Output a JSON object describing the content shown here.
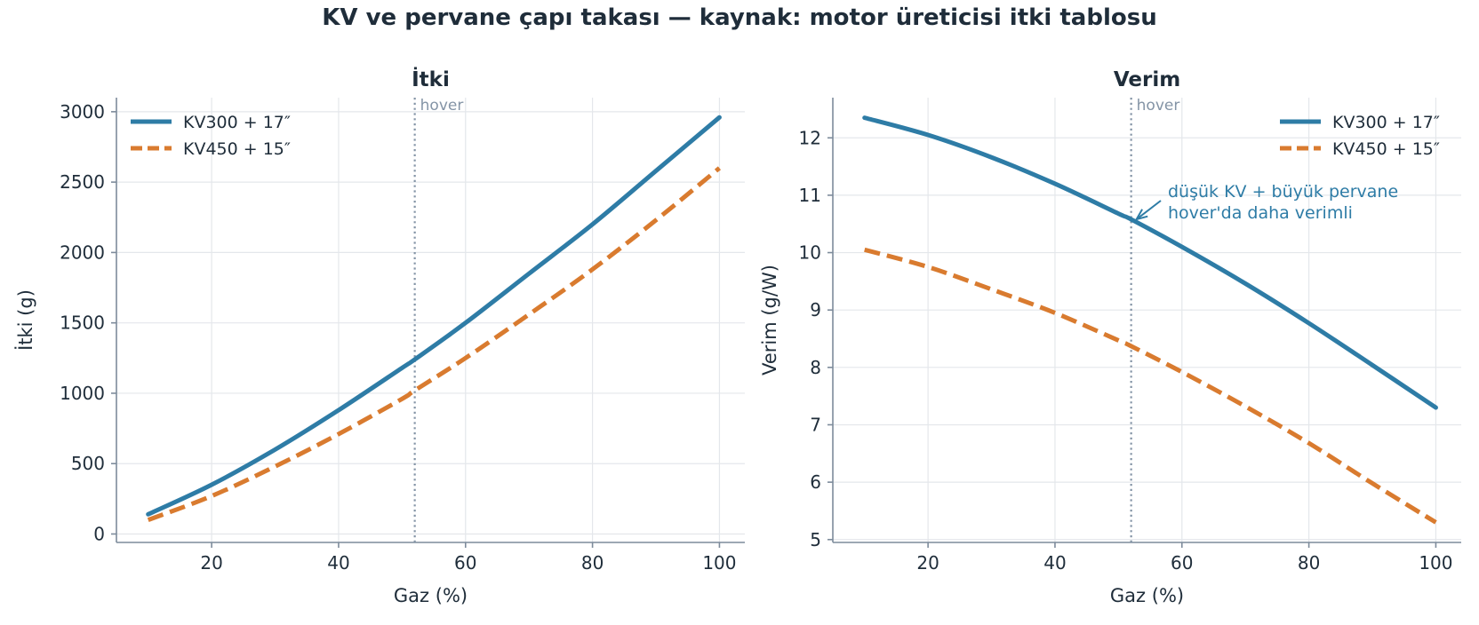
{
  "suptitle": "KV ve pervane çapı takası — kaynak: motor üreticisi itki tablosu",
  "colors": {
    "series1": "#2e7ca6",
    "series2": "#d97b2f",
    "hover_line": "#8494a6",
    "text": "#1f2d3a"
  },
  "chart_data": [
    {
      "type": "line",
      "title": "İtki",
      "xlabel": "Gaz (%)",
      "ylabel": "İtki (g)",
      "xlim": [
        5,
        104
      ],
      "ylim": [
        -60,
        3100
      ],
      "xticks": [
        20,
        40,
        60,
        80,
        100
      ],
      "yticks": [
        0,
        500,
        1000,
        1500,
        2000,
        2500,
        3000
      ],
      "grid": true,
      "legend": "top-left",
      "vline": {
        "x": 52,
        "label": "hover"
      },
      "series": [
        {
          "name": "KV300 + 17″",
          "style": "solid",
          "x": [
            10,
            20,
            30,
            40,
            50,
            52,
            60,
            70,
            80,
            90,
            100
          ],
          "y": [
            140,
            350,
            600,
            880,
            1180,
            1240,
            1500,
            1850,
            2200,
            2580,
            2960
          ]
        },
        {
          "name": "KV450 + 15″",
          "style": "dashed",
          "x": [
            10,
            20,
            30,
            40,
            50,
            52,
            60,
            70,
            80,
            90,
            100
          ],
          "y": [
            100,
            270,
            480,
            710,
            960,
            1020,
            1250,
            1560,
            1880,
            2230,
            2600
          ]
        }
      ]
    },
    {
      "type": "line",
      "title": "Verim",
      "xlabel": "Gaz (%)",
      "ylabel": "Verim (g/W)",
      "xlim": [
        5,
        104
      ],
      "ylim": [
        4.95,
        12.7
      ],
      "xticks": [
        20,
        40,
        60,
        80,
        100
      ],
      "yticks": [
        5,
        6,
        7,
        8,
        9,
        10,
        11,
        12
      ],
      "grid": true,
      "legend": "top-right",
      "vline": {
        "x": 52,
        "label": "hover"
      },
      "annotation": {
        "lines": [
          "düşük KV + büyük pervane",
          "hover'da daha verimli"
        ],
        "arrow_to": {
          "x": 52,
          "y": 10.58
        }
      },
      "series": [
        {
          "name": "KV300 + 17″",
          "style": "solid",
          "x": [
            10,
            20,
            30,
            40,
            50,
            52,
            60,
            70,
            80,
            90,
            100
          ],
          "y": [
            12.35,
            12.05,
            11.66,
            11.2,
            10.68,
            10.58,
            10.1,
            9.46,
            8.77,
            8.04,
            7.3
          ]
        },
        {
          "name": "KV450 + 15″",
          "style": "dashed",
          "x": [
            10,
            20,
            30,
            40,
            50,
            52,
            60,
            70,
            80,
            90,
            100
          ],
          "y": [
            10.05,
            9.75,
            9.36,
            8.95,
            8.47,
            8.37,
            7.92,
            7.32,
            6.68,
            5.98,
            5.3
          ]
        }
      ]
    }
  ]
}
